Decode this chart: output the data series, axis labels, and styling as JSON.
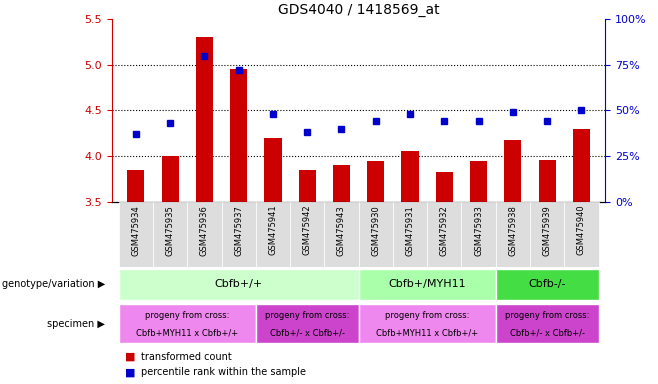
{
  "title": "GDS4040 / 1418569_at",
  "samples": [
    "GSM475934",
    "GSM475935",
    "GSM475936",
    "GSM475937",
    "GSM475941",
    "GSM475942",
    "GSM475943",
    "GSM475930",
    "GSM475931",
    "GSM475932",
    "GSM475933",
    "GSM475938",
    "GSM475939",
    "GSM475940"
  ],
  "bar_values": [
    3.85,
    4.0,
    5.3,
    4.95,
    4.2,
    3.85,
    3.9,
    3.95,
    4.05,
    3.82,
    3.95,
    4.18,
    3.96,
    4.3
  ],
  "dot_percentiles": [
    37,
    43,
    80,
    72,
    48,
    38,
    40,
    44,
    48,
    44,
    44,
    49,
    44,
    50
  ],
  "ylim_left": [
    3.5,
    5.5
  ],
  "ylim_right": [
    0,
    100
  ],
  "yticks_left": [
    3.5,
    4.0,
    4.5,
    5.0,
    5.5
  ],
  "yticks_right": [
    0,
    25,
    50,
    75,
    100
  ],
  "bar_color": "#cc0000",
  "dot_color": "#0000cc",
  "genotype_groups": [
    {
      "label": "Cbfb+/+",
      "start": 0,
      "end": 7,
      "color": "#ccffcc"
    },
    {
      "label": "Cbfb+/MYH11",
      "start": 7,
      "end": 11,
      "color": "#aaffaa"
    },
    {
      "label": "Cbfb-/-",
      "start": 11,
      "end": 14,
      "color": "#44dd44"
    }
  ],
  "specimen_groups": [
    {
      "label": "progeny from cross:\nCbfb+MYH11 x Cbfb+/+",
      "start": 0,
      "end": 4,
      "color": "#ee88ee"
    },
    {
      "label": "progeny from cross:\nCbfb+/- x Cbfb+/-",
      "start": 4,
      "end": 7,
      "color": "#cc44cc"
    },
    {
      "label": "progeny from cross:\nCbfb+MYH11 x Cbfb+/+",
      "start": 7,
      "end": 11,
      "color": "#ee88ee"
    },
    {
      "label": "progeny from cross:\nCbfb+/- x Cbfb+/-",
      "start": 11,
      "end": 14,
      "color": "#cc44cc"
    }
  ],
  "legend_bar_label": "transformed count",
  "legend_dot_label": "percentile rank within the sample",
  "left_axis_color": "#cc0000",
  "right_axis_color": "#0000cc",
  "geno_label": "genotype/variation",
  "spec_label": "specimen",
  "bar_width": 0.5
}
